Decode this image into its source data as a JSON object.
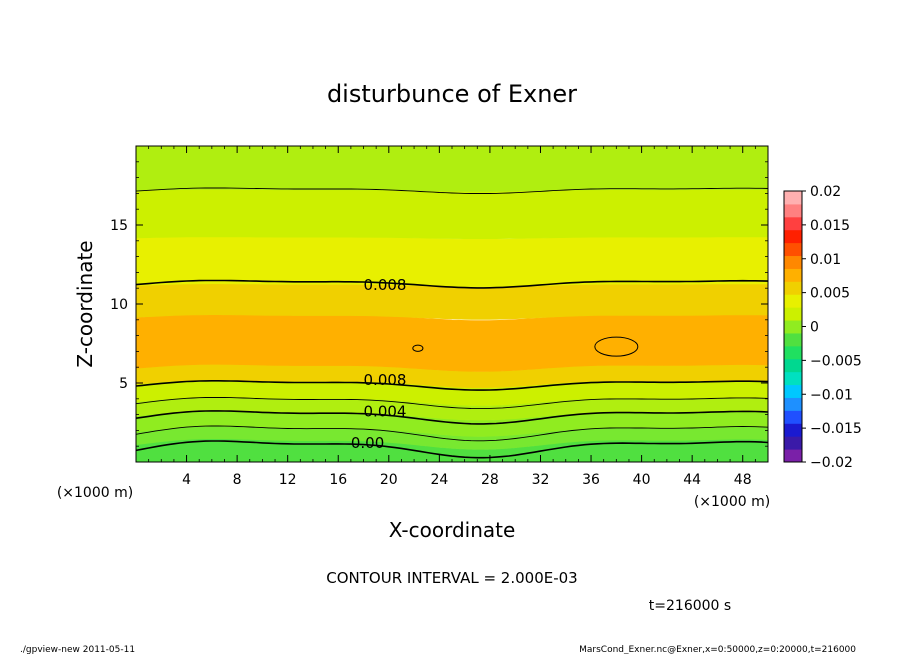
{
  "chart_data": {
    "type": "contour",
    "title": "disturbunce of Exner",
    "xlabel": "X-coordinate",
    "ylabel": "Z-coordinate",
    "x_unit_label": "(×1000 m)",
    "y_unit_label": "(×1000 m)",
    "xlim": [
      0,
      50
    ],
    "ylim": [
      0,
      20
    ],
    "x_ticks": [
      4,
      8,
      12,
      16,
      20,
      24,
      28,
      32,
      36,
      40,
      44,
      48
    ],
    "y_ticks": [
      5,
      10,
      15
    ],
    "x_tick_labels": [
      "4",
      "8",
      "12",
      "16",
      "20",
      "24",
      "28",
      "32",
      "36",
      "40",
      "44",
      "48"
    ],
    "y_tick_labels": [
      "5",
      "10",
      "15"
    ],
    "contour_interval_text": "CONTOUR INTERVAL = 2.000E-03",
    "time_text": "t=216000 s",
    "contour_labels": [
      {
        "text": "0.008",
        "x": 18,
        "z": 11.2
      },
      {
        "text": "0.008",
        "x": 18,
        "z": 5.2
      },
      {
        "text": "0.004",
        "x": 18,
        "z": 3.2
      },
      {
        "text": "0.00",
        "x": 17,
        "z": 1.2
      }
    ],
    "colorbar": {
      "levels": [
        -0.02,
        -0.015,
        -0.01,
        -0.005,
        0,
        0.005,
        0.01,
        0.015,
        0.02
      ],
      "tick_labels": [
        "0.02",
        "0.015",
        "0.01",
        "0.005",
        "0",
        "−0.005",
        "−0.01",
        "−0.015",
        "−0.02"
      ],
      "colors": [
        "#7a20a8",
        "#3a1aa8",
        "#1a1ad0",
        "#2050ff",
        "#1e90ff",
        "#00c8ff",
        "#00e0c0",
        "#00d890",
        "#20e060",
        "#50e040",
        "#90ec20",
        "#ccf000",
        "#e8f000",
        "#f0d000",
        "#ffb000",
        "#ff8800",
        "#ff5000",
        "#ff2000",
        "#ff4040",
        "#ff8080",
        "#ffb0b0"
      ]
    },
    "bands": [
      {
        "z0": 0,
        "z1": 1.2,
        "color": "#50e040"
      },
      {
        "z0": 1.2,
        "z1": 2.0,
        "color": "#78e830"
      },
      {
        "z0": 2.0,
        "z1": 3.0,
        "color": "#90ec20"
      },
      {
        "z0": 3.0,
        "z1": 3.9,
        "color": "#b0ee10"
      },
      {
        "z0": 3.9,
        "z1": 5.0,
        "color": "#ccf000"
      },
      {
        "z0": 5.0,
        "z1": 6.0,
        "color": "#f0d000"
      },
      {
        "z0": 6.0,
        "z1": 9.2,
        "color": "#ffb000"
      },
      {
        "z0": 9.2,
        "z1": 11.2,
        "color": "#f0d000"
      },
      {
        "z0": 11.2,
        "z1": 14.2,
        "color": "#e8f000"
      },
      {
        "z0": 14.2,
        "z1": 17.2,
        "color": "#ccf000"
      },
      {
        "z0": 17.2,
        "z1": 20,
        "color": "#b0ee10"
      }
    ],
    "contour_lines": [
      {
        "z": 0.9,
        "amp": 0.45,
        "bold": true
      },
      {
        "z": 1.9,
        "amp": 0.4,
        "bold": false
      },
      {
        "z": 2.9,
        "amp": 0.35,
        "bold": true
      },
      {
        "z": 3.8,
        "amp": 0.3,
        "bold": false
      },
      {
        "z": 4.9,
        "amp": 0.25,
        "bold": true
      },
      {
        "z": 11.3,
        "amp": 0.2,
        "bold": true
      },
      {
        "z": 17.2,
        "amp": 0.15,
        "bold": false
      }
    ],
    "closed_contours": [
      {
        "x": 22.3,
        "z": 7.2,
        "rx": 0.4,
        "rz": 0.2
      },
      {
        "x": 38,
        "z": 7.3,
        "rx": 1.7,
        "rz": 0.6
      }
    ]
  },
  "footer": {
    "left": "./gpview-new  2011-05-11",
    "right": "MarsCond_Exner.nc@Exner,x=0:50000,z=0:20000,t=216000"
  }
}
